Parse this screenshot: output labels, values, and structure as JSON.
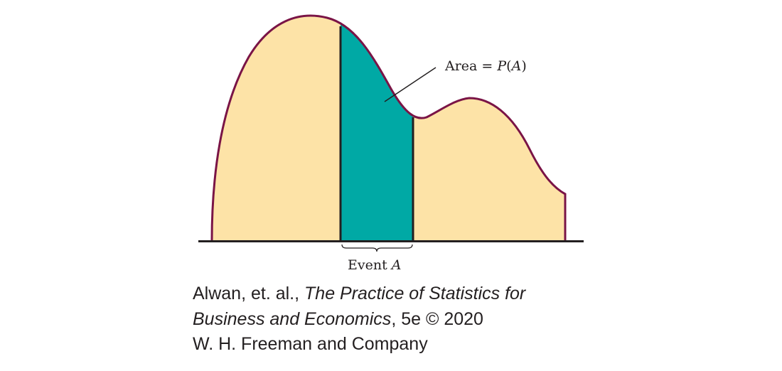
{
  "diagram": {
    "area_label_prefix": "Area = ",
    "area_label_func": "P",
    "area_label_arg": "A",
    "event_label_word": "Event ",
    "event_label_var": "A",
    "colors": {
      "curve_fill": "#fde3a7",
      "curve_stroke": "#7a1446",
      "event_fill": "#00a9a5",
      "event_border": "#231f20",
      "axis": "#231f20"
    }
  },
  "credit": {
    "line1_plain": "Alwan, et. al., ",
    "line1_italic": "The Practice of Statistics for",
    "line2_italic": "Business and Economics",
    "line2_plain": ", 5e © 2020",
    "line3": "W. H. Freeman and Company"
  }
}
